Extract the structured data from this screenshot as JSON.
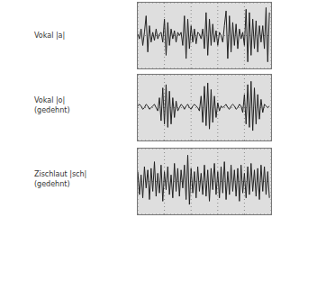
{
  "chart_data": [
    {
      "type": "line",
      "title": "Vokal |a|",
      "color": "#222222",
      "grid": true,
      "tick_labels": false,
      "xlim": [
        0,
        80
      ],
      "xticks": [
        0,
        16,
        32,
        48,
        64,
        80
      ],
      "ylim": [
        -1,
        1
      ],
      "yticks": [
        -1,
        -0.5,
        0,
        0.5,
        1
      ],
      "values": [
        0.05,
        -0.1,
        0.2,
        -0.3,
        0.1,
        0.6,
        -0.5,
        0.3,
        -0.2,
        0.1,
        -0.15,
        0.2,
        -0.1,
        0.05,
        0.1,
        -0.2,
        0.5,
        -0.6,
        0.4,
        -0.3,
        0.2,
        -0.1,
        0.15,
        -0.2,
        0.1,
        0.0,
        0.1,
        -0.3,
        0.6,
        -0.7,
        0.5,
        -0.4,
        0.3,
        -0.2,
        0.2,
        -0.25,
        0.1,
        0.05,
        -0.1,
        0.2,
        -0.4,
        0.7,
        -0.6,
        0.5,
        -0.3,
        0.35,
        -0.2,
        0.15,
        -0.3,
        0.1,
        0.0,
        -0.2,
        0.3,
        0.75,
        -0.7,
        0.6,
        -0.5,
        0.4,
        -0.3,
        0.35,
        -0.4,
        0.2,
        -0.1,
        0.1,
        -0.3,
        0.8,
        -0.8,
        0.7,
        -0.6,
        0.5,
        -0.4,
        0.45,
        -0.5,
        0.3,
        -0.2,
        0.3,
        -0.4,
        0.85,
        -0.8,
        0.7
      ]
    },
    {
      "type": "line",
      "title": "Vokal |o|",
      "subtitle": "(gedehnt)",
      "color": "#222222",
      "grid": true,
      "tick_labels": false,
      "xlim": [
        0,
        80
      ],
      "xticks": [
        0,
        16,
        32,
        48,
        64,
        80
      ],
      "ylim": [
        -1,
        1
      ],
      "yticks": [
        -1,
        -0.5,
        0,
        0.5,
        1
      ],
      "values": [
        0.05,
        0.1,
        0.05,
        -0.05,
        0.0,
        0.1,
        0.05,
        -0.05,
        0.0,
        0.05,
        0.1,
        0.0,
        -0.1,
        0.3,
        -0.4,
        0.6,
        -0.5,
        0.7,
        -0.6,
        0.5,
        -0.5,
        0.3,
        -0.3,
        0.2,
        -0.1,
        0.0,
        0.1,
        0.05,
        -0.05,
        0.05,
        0.1,
        0.0,
        -0.05,
        0.05,
        0.1,
        0.05,
        0.0,
        -0.1,
        0.35,
        -0.45,
        0.65,
        -0.55,
        0.75,
        -0.65,
        0.55,
        -0.45,
        0.35,
        -0.3,
        0.15,
        -0.1,
        0.05,
        0.0,
        0.05,
        0.1,
        0.0,
        -0.05,
        0.05,
        0.1,
        0.05,
        -0.05,
        0.0,
        0.1,
        0.05,
        -0.15,
        0.4,
        -0.5,
        0.7,
        -0.6,
        0.8,
        -0.7,
        0.6,
        -0.5,
        0.4,
        -0.35,
        0.25,
        -0.15,
        0.1,
        0.05,
        0.0,
        0.05
      ]
    },
    {
      "type": "line",
      "title": "Zischlaut |sch|",
      "subtitle": "(gedehnt)",
      "color": "#222222",
      "grid": true,
      "tick_labels": false,
      "xlim": [
        0,
        80
      ],
      "xticks": [
        0,
        16,
        32,
        48,
        64,
        80
      ],
      "ylim": [
        -1,
        1
      ],
      "yticks": [
        -1,
        -0.5,
        0,
        0.5,
        1
      ],
      "values": [
        0.3,
        -0.4,
        0.2,
        -0.5,
        0.45,
        -0.2,
        0.35,
        -0.55,
        0.4,
        -0.3,
        0.6,
        -0.45,
        0.25,
        -0.35,
        0.5,
        -0.6,
        0.3,
        -0.25,
        0.45,
        -0.4,
        0.2,
        -0.5,
        0.55,
        -0.3,
        0.4,
        -0.45,
        0.35,
        -0.2,
        0.5,
        -0.55,
        0.8,
        -0.7,
        0.4,
        -0.35,
        0.3,
        -0.5,
        0.45,
        -0.3,
        0.25,
        -0.4,
        0.5,
        -0.45,
        0.35,
        -0.6,
        0.4,
        -0.25,
        0.55,
        -0.4,
        0.3,
        -0.5,
        0.45,
        -0.35,
        0.6,
        -0.55,
        0.3,
        -0.4,
        0.5,
        -0.3,
        0.35,
        -0.45,
        0.4,
        -0.6,
        0.5,
        -0.35,
        0.25,
        -0.5,
        0.45,
        -0.4,
        0.55,
        -0.3,
        0.35,
        -0.45,
        0.4,
        -0.55,
        0.5,
        -0.3,
        0.45,
        -0.4,
        0.3,
        -0.5
      ]
    }
  ]
}
